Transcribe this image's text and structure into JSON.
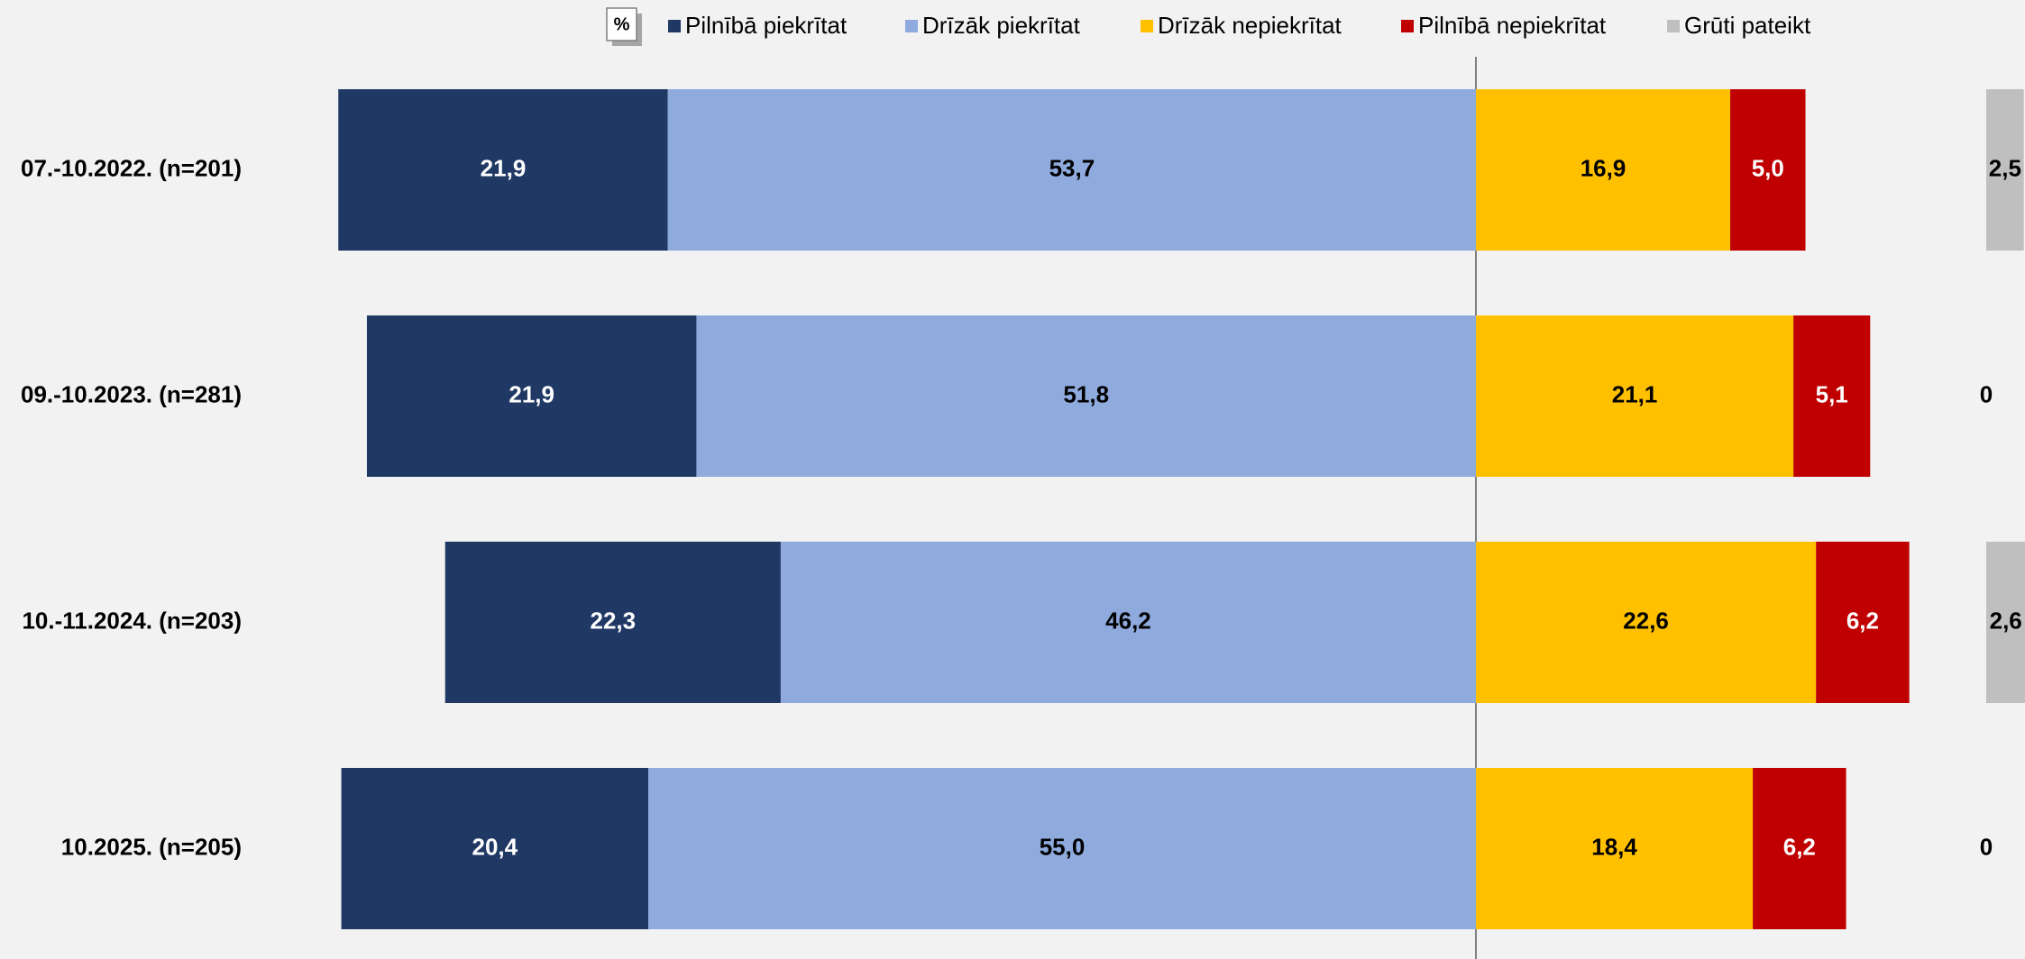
{
  "chart_data": {
    "type": "diverging-bar",
    "categories": [
      "07.-10.2022. (n=201)",
      "09.-10.2023. (n=281)",
      "10.-11.2024. (n=203)",
      "10.2025. (n=205)"
    ],
    "series": [
      {
        "name": "Pilnībā piekrītat",
        "color": "#203864",
        "label_color": "#ffffff",
        "values": [
          21.9,
          21.9,
          22.3,
          20.4
        ],
        "value_labels": [
          "21,9",
          "21,9",
          "22,3",
          "20,4"
        ]
      },
      {
        "name": "Drīzāk piekrītat",
        "color": "#8faadc",
        "label_color": "#000000",
        "values": [
          53.7,
          51.8,
          46.2,
          55.0
        ],
        "value_labels": [
          "53,7",
          "51,8",
          "46,2",
          "55,0"
        ]
      },
      {
        "name": "Drīzāk nepiekrītat",
        "color": "#ffc000",
        "label_color": "#000000",
        "values": [
          16.9,
          21.1,
          22.6,
          18.4
        ],
        "value_labels": [
          "16,9",
          "21,1",
          "22,6",
          "18,4"
        ]
      },
      {
        "name": "Pilnībā nepiekrītat",
        "color": "#c00000",
        "label_color": "#ffffff",
        "values": [
          5.0,
          5.1,
          6.2,
          6.2
        ],
        "value_labels": [
          "5,0",
          "5,1",
          "6,2",
          "6,2"
        ]
      },
      {
        "name": "Grūti pateikt",
        "color": "#bfbfbf",
        "label_color": "#000000",
        "values": [
          2.5,
          0,
          2.6,
          0
        ],
        "value_labels": [
          "2,5",
          "0",
          "2,6",
          "0"
        ]
      }
    ],
    "unit_badge": "%"
  }
}
